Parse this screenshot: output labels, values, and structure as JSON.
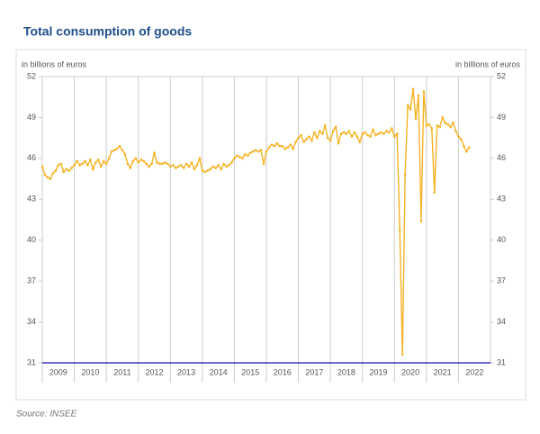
{
  "chart_data": {
    "type": "line",
    "title": "Total consumption of goods",
    "ylabel": "in billions of euros",
    "y2label": "in billions of euros",
    "source": "Source: INSEE",
    "xlim": [
      2009,
      2023
    ],
    "xticks": [
      2009,
      2010,
      2011,
      2012,
      2013,
      2014,
      2015,
      2016,
      2017,
      2018,
      2019,
      2020,
      2021,
      2022
    ],
    "ylim": [
      31,
      52
    ],
    "yticks": [
      31,
      34,
      37,
      40,
      43,
      46,
      49,
      52
    ],
    "y2lim": [
      31,
      52
    ],
    "y2ticks": [
      31,
      34,
      37,
      40,
      43,
      46,
      49,
      52
    ],
    "grid": true,
    "x": [
      2009,
      2009.083,
      2009.167,
      2009.25,
      2009.333,
      2009.417,
      2009.5,
      2009.583,
      2009.667,
      2009.75,
      2009.833,
      2009.917,
      2010,
      2010.083,
      2010.167,
      2010.25,
      2010.333,
      2010.417,
      2010.5,
      2010.583,
      2010.667,
      2010.75,
      2010.833,
      2010.917,
      2011,
      2011.083,
      2011.167,
      2011.25,
      2011.333,
      2011.417,
      2011.5,
      2011.583,
      2011.667,
      2011.75,
      2011.833,
      2011.917,
      2012,
      2012.083,
      2012.167,
      2012.25,
      2012.333,
      2012.417,
      2012.5,
      2012.583,
      2012.667,
      2012.75,
      2012.833,
      2012.917,
      2013,
      2013.083,
      2013.167,
      2013.25,
      2013.333,
      2013.417,
      2013.5,
      2013.583,
      2013.667,
      2013.75,
      2013.833,
      2013.917,
      2014,
      2014.083,
      2014.167,
      2014.25,
      2014.333,
      2014.417,
      2014.5,
      2014.583,
      2014.667,
      2014.75,
      2014.833,
      2014.917,
      2015,
      2015.083,
      2015.167,
      2015.25,
      2015.333,
      2015.417,
      2015.5,
      2015.583,
      2015.667,
      2015.75,
      2015.833,
      2015.917,
      2016,
      2016.083,
      2016.167,
      2016.25,
      2016.333,
      2016.417,
      2016.5,
      2016.583,
      2016.667,
      2016.75,
      2016.833,
      2016.917,
      2017,
      2017.083,
      2017.167,
      2017.25,
      2017.333,
      2017.417,
      2017.5,
      2017.583,
      2017.667,
      2017.75,
      2017.833,
      2017.917,
      2018,
      2018.083,
      2018.167,
      2018.25,
      2018.333,
      2018.417,
      2018.5,
      2018.583,
      2018.667,
      2018.75,
      2018.833,
      2018.917,
      2019,
      2019.083,
      2019.167,
      2019.25,
      2019.333,
      2019.417,
      2019.5,
      2019.583,
      2019.667,
      2019.75,
      2019.833,
      2019.917,
      2020,
      2020.083,
      2020.167,
      2020.25,
      2020.333,
      2020.417,
      2020.5,
      2020.583,
      2020.667,
      2020.75,
      2020.833,
      2020.917,
      2021,
      2021.083,
      2021.167,
      2021.25,
      2021.333,
      2021.417,
      2021.5,
      2021.583,
      2021.667,
      2021.75,
      2021.833,
      2021.917,
      2022,
      2022.083,
      2022.167,
      2022.25,
      2022.333
    ],
    "series": [
      {
        "color": "#f5b324",
        "values": [
          45.4,
          44.8,
          44.6,
          44.5,
          44.9,
          45.1,
          45.5,
          45.6,
          45.0,
          45.2,
          45.1,
          45.3,
          45.5,
          45.8,
          45.5,
          45.6,
          45.8,
          45.5,
          45.9,
          45.2,
          45.7,
          45.9,
          45.4,
          45.8,
          45.6,
          46.0,
          46.5,
          46.6,
          46.7,
          46.9,
          46.6,
          46.3,
          45.6,
          45.3,
          45.8,
          46.0,
          45.7,
          45.9,
          45.8,
          45.6,
          45.4,
          45.6,
          46.4,
          45.7,
          45.6,
          45.6,
          45.7,
          45.6,
          45.4,
          45.5,
          45.3,
          45.4,
          45.5,
          45.3,
          45.6,
          45.4,
          45.7,
          45.2,
          45.5,
          46.0,
          45.1,
          45.0,
          45.1,
          45.2,
          45.4,
          45.3,
          45.5,
          45.2,
          45.6,
          45.4,
          45.5,
          45.7,
          46.0,
          46.2,
          46.1,
          46.0,
          46.3,
          46.2,
          46.4,
          46.5,
          46.6,
          46.5,
          46.6,
          45.6,
          46.5,
          46.8,
          47.0,
          46.9,
          47.1,
          46.9,
          46.9,
          46.7,
          46.8,
          47.0,
          46.7,
          47.2,
          47.5,
          47.7,
          47.2,
          47.4,
          47.6,
          47.3,
          47.9,
          47.5,
          48.0,
          47.8,
          48.4,
          47.5,
          47.3,
          48.0,
          48.3,
          47.1,
          47.8,
          47.9,
          47.8,
          48.0,
          47.6,
          47.9,
          47.6,
          47.2,
          47.8,
          47.9,
          47.7,
          47.6,
          48.1,
          47.7,
          47.8,
          47.9,
          47.8,
          48.0,
          47.9,
          48.2,
          47.6,
          47.8,
          40.7,
          31.6,
          44.8,
          49.9,
          49.6,
          51.1,
          48.9,
          50.6,
          41.4,
          50.9,
          48.4,
          48.5,
          48.2,
          43.5,
          48.4,
          48.3,
          49.0,
          48.6,
          48.5,
          48.3,
          48.6,
          48.0,
          47.6,
          47.4,
          46.9,
          46.5,
          46.8
        ]
      }
    ]
  }
}
